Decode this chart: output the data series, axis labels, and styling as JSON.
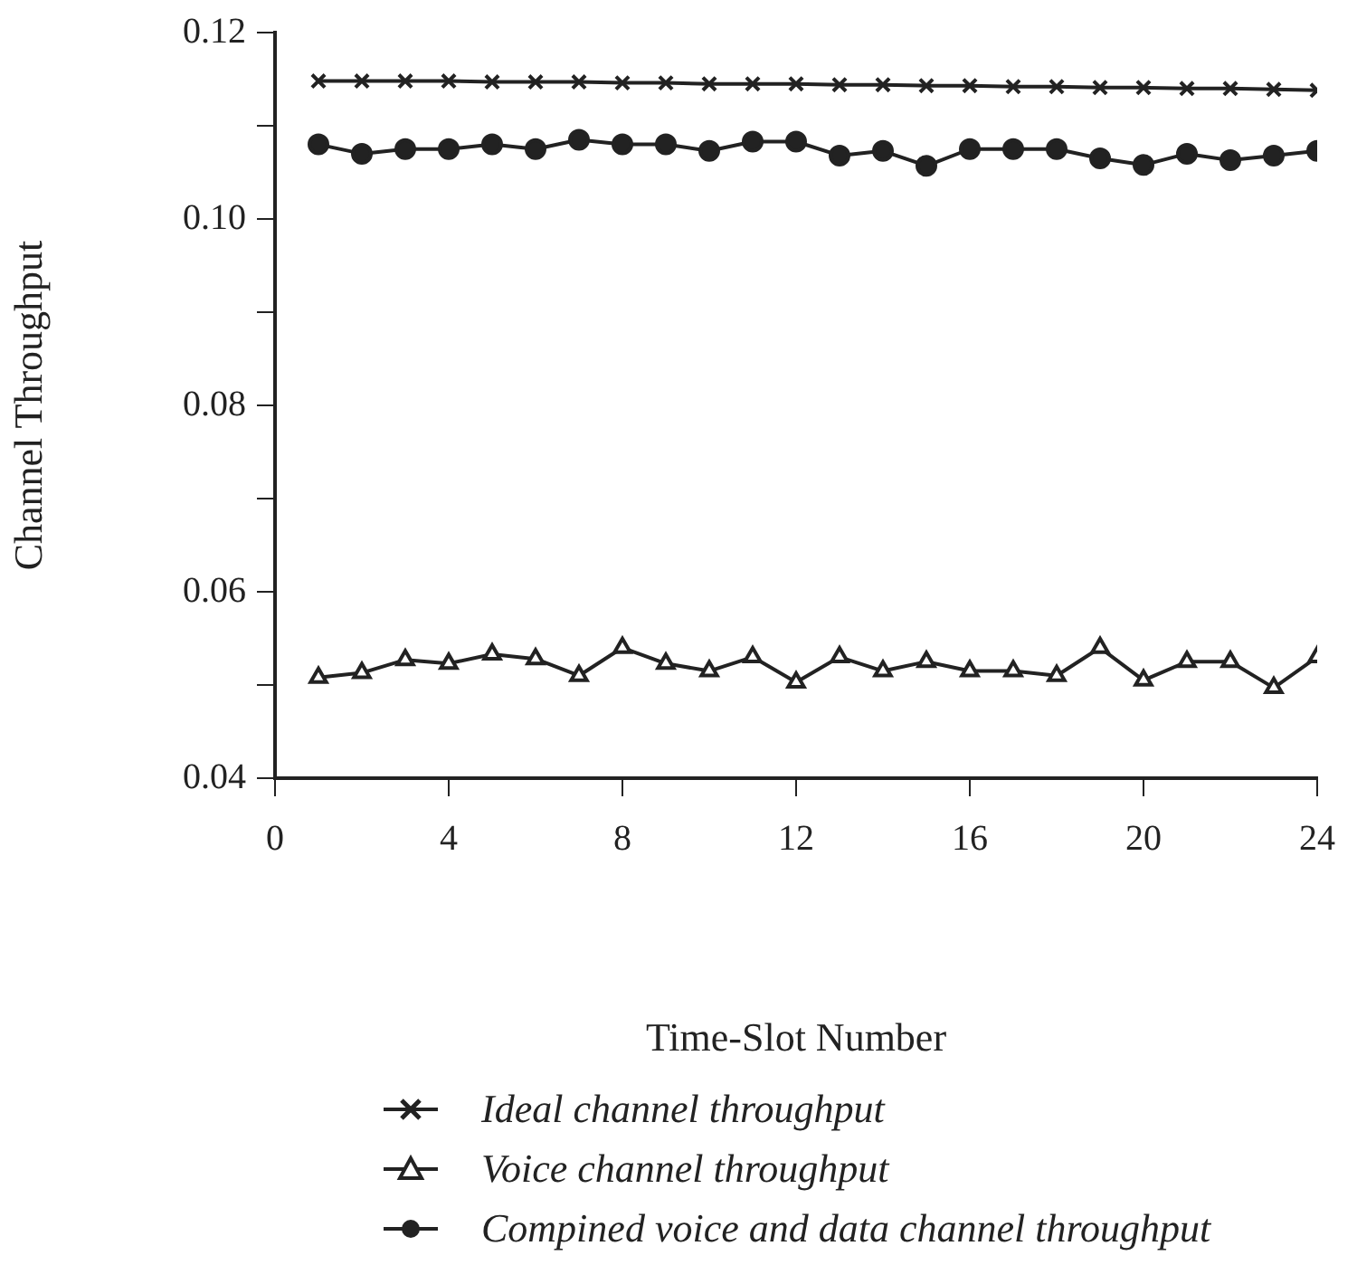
{
  "chart_data": {
    "type": "line",
    "xlabel": "Time-Slot Number",
    "ylabel": "Channel Throughput",
    "x": [
      1,
      2,
      3,
      4,
      5,
      6,
      7,
      8,
      9,
      10,
      11,
      12,
      13,
      14,
      15,
      16,
      17,
      18,
      19,
      20,
      21,
      22,
      23,
      24
    ],
    "xlim": [
      0,
      24
    ],
    "xticks": [
      0,
      4,
      8,
      12,
      16,
      20,
      24
    ],
    "ylim": [
      0.04,
      0.12
    ],
    "yticks": [
      0.04,
      {
        "value": 0.05,
        "label": null
      },
      0.06,
      {
        "value": 0.07,
        "label": null
      },
      0.08,
      {
        "value": 0.09,
        "label": null
      },
      {
        "value": 0.1,
        "label": "0.10"
      },
      {
        "value": 0.11,
        "label": null
      },
      0.12
    ],
    "grid": false,
    "legend": "bottom left",
    "line_style": "solid",
    "series": [
      {
        "name": "Ideal channel throughput",
        "color": "#222222",
        "marker": "cross",
        "values": [
          0.1148,
          0.1148,
          0.1148,
          0.1148,
          0.1147,
          0.1147,
          0.1147,
          0.1146,
          0.1146,
          0.1145,
          0.1145,
          0.1145,
          0.1144,
          0.1144,
          0.1143,
          0.1143,
          0.1142,
          0.1142,
          0.1141,
          0.1141,
          0.114,
          0.114,
          0.1139,
          0.1138
        ]
      },
      {
        "name": "Voice channel throughput",
        "color": "#222222",
        "marker": "triangle",
        "values": [
          0.0508,
          0.0513,
          0.0527,
          0.0523,
          0.0533,
          0.0528,
          0.051,
          0.054,
          0.0523,
          0.0515,
          0.053,
          0.0503,
          0.053,
          0.0515,
          0.0525,
          0.0515,
          0.0515,
          0.051,
          0.054,
          0.0505,
          0.0525,
          0.0525,
          0.0497,
          0.053
        ]
      },
      {
        "name": "Compined voice and data channel throughput",
        "color": "#222222",
        "marker": "circle",
        "values": [
          0.108,
          0.107,
          0.1075,
          0.1075,
          0.108,
          0.1075,
          0.1085,
          0.108,
          0.108,
          0.1073,
          0.1083,
          0.1083,
          0.1068,
          0.1073,
          0.1057,
          0.1075,
          0.1075,
          0.1075,
          0.1065,
          0.1058,
          0.107,
          0.1063,
          0.1068,
          0.1073
        ]
      }
    ]
  }
}
